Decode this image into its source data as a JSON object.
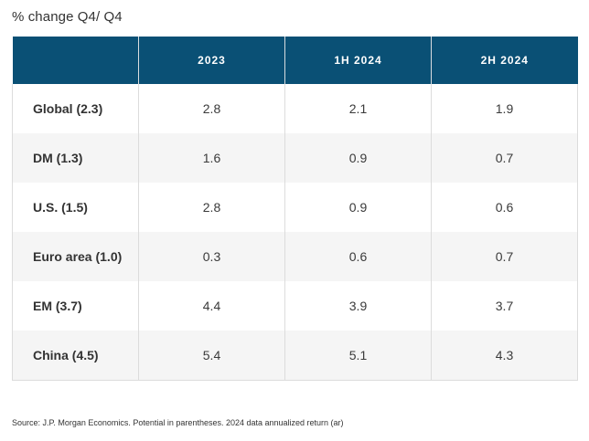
{
  "subtitle": "% change Q4/ Q4",
  "source": "Source: J.P. Morgan Economics. Potential in parentheses. 2024 data annualized return (ar)",
  "colors": {
    "header_bg": "#0a5075",
    "header_text": "#ffffff",
    "row_alt_bg": "#f5f5f5"
  },
  "chart_data": {
    "type": "table",
    "title": "% change Q4/ Q4",
    "columns": [
      "",
      "2023",
      "1H 2024",
      "2H 2024"
    ],
    "rows": [
      {
        "label": "Global (2.3)",
        "values": [
          "2.8",
          "2.1",
          "1.9"
        ]
      },
      {
        "label": "DM (1.3)",
        "values": [
          "1.6",
          "0.9",
          "0.7"
        ]
      },
      {
        "label": "U.S. (1.5)",
        "values": [
          "2.8",
          "0.9",
          "0.6"
        ]
      },
      {
        "label": "Euro area (1.0)",
        "values": [
          "0.3",
          "0.6",
          "0.7"
        ]
      },
      {
        "label": "EM (3.7)",
        "values": [
          "4.4",
          "3.9",
          "3.7"
        ]
      },
      {
        "label": "China (4.5)",
        "values": [
          "5.4",
          "5.1",
          "4.3"
        ]
      }
    ]
  }
}
